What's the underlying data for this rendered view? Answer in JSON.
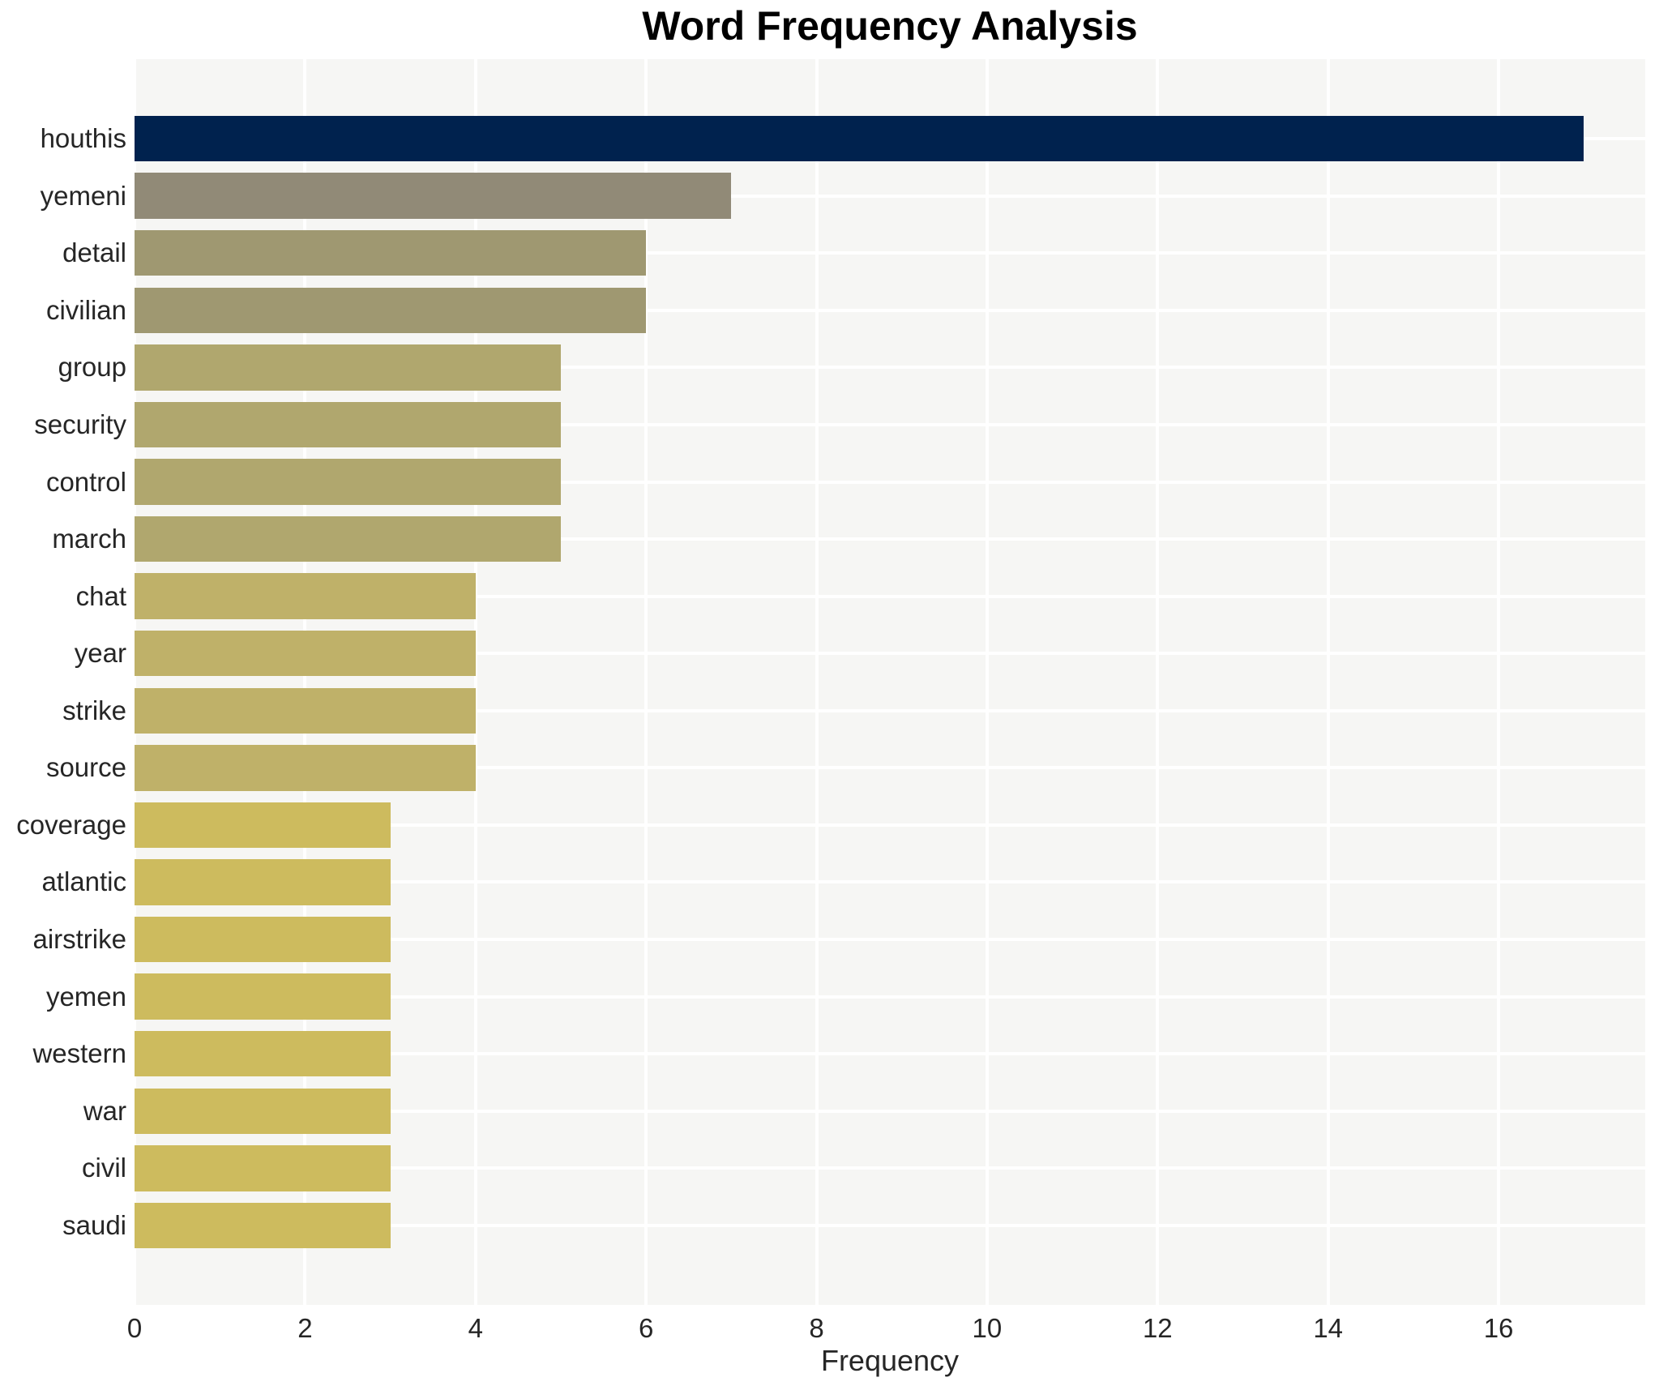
{
  "title": "Word Frequency Analysis",
  "xlabel": "Frequency",
  "chart_data": {
    "type": "bar",
    "orientation": "horizontal",
    "title": "Word Frequency Analysis",
    "xlabel": "Frequency",
    "ylabel": "",
    "categories": [
      "houthis",
      "yemeni",
      "detail",
      "civilian",
      "group",
      "security",
      "control",
      "march",
      "chat",
      "year",
      "strike",
      "source",
      "coverage",
      "atlantic",
      "airstrike",
      "yemen",
      "western",
      "war",
      "civil",
      "saudi"
    ],
    "values": [
      17,
      7,
      6,
      6,
      5,
      5,
      5,
      5,
      4,
      4,
      4,
      4,
      3,
      3,
      3,
      3,
      3,
      3,
      3,
      3
    ],
    "bar_colors": [
      "#00224e",
      "#918a77",
      "#9f9871",
      "#9f9871",
      "#b0a76e",
      "#b0a76e",
      "#b0a76e",
      "#b0a76e",
      "#bfb169",
      "#bfb169",
      "#bfb169",
      "#bfb169",
      "#cdbb5e",
      "#cdbb5e",
      "#cdbb5e",
      "#cdbb5e",
      "#cdbb5e",
      "#cdbb5e",
      "#cdbb5e",
      "#cdbb5e"
    ],
    "xlim": [
      0,
      17.72
    ],
    "xticks": [
      0,
      2,
      4,
      6,
      8,
      10,
      12,
      14,
      16
    ],
    "grid": true,
    "grid_color": "#ffffff",
    "plot_background": "#f6f6f4",
    "figure_background": "#ffffff",
    "legend": "none"
  }
}
